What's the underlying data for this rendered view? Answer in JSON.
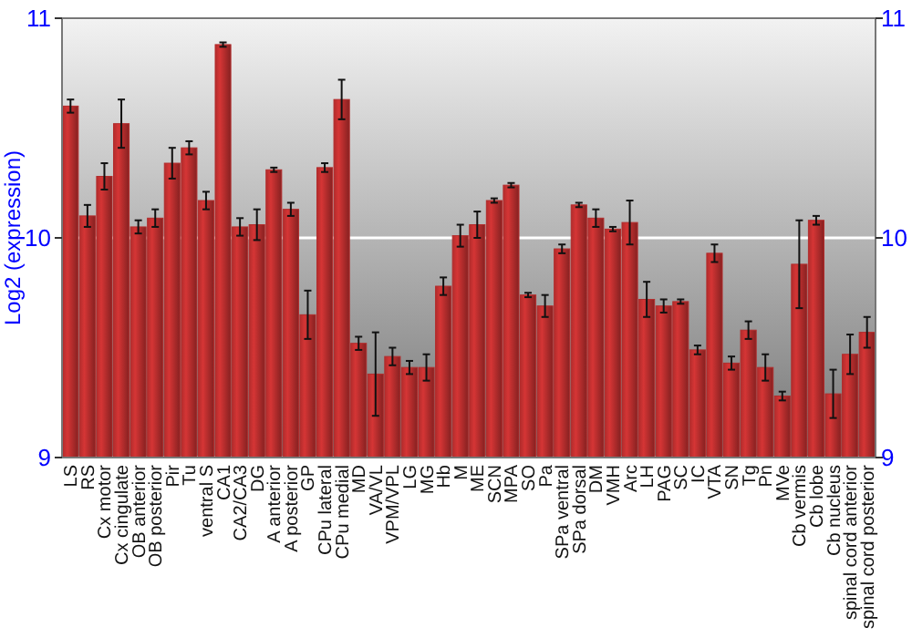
{
  "chart_data": {
    "type": "bar",
    "ylabel": "Log2 (expression)",
    "categories": [
      "LS",
      "RS",
      "Cx motor",
      "Cx cingulate",
      "OB anterior",
      "OB posterior",
      "Pir",
      "Tu",
      "ventral S",
      "CA1",
      "CA2/CA3",
      "DG",
      "A anterior",
      "A posterior",
      "GP",
      "CPu lateral",
      "CPu medial",
      "MD",
      "VA/VL",
      "VPM/VPL",
      "LG",
      "MG",
      "Hb",
      "M",
      "ME",
      "SCN",
      "MPA",
      "SO",
      "Pa",
      "SPa ventral",
      "SPa dorsal",
      "DM",
      "VMH",
      "Arc",
      "LH",
      "PAG",
      "SC",
      "IC",
      "VTA",
      "SN",
      "Tg",
      "Pn",
      "MVe",
      "Cb vermis",
      "Cb lobe",
      "Cb nucleus",
      "spinal cord anterior",
      "spinal cord posterior"
    ],
    "values": [
      10.6,
      10.1,
      10.28,
      10.52,
      10.05,
      10.09,
      10.34,
      10.41,
      10.17,
      10.88,
      10.05,
      10.06,
      10.31,
      10.13,
      9.65,
      10.32,
      10.63,
      9.52,
      9.38,
      9.46,
      9.41,
      9.41,
      9.78,
      10.01,
      10.06,
      10.17,
      10.24,
      9.74,
      9.69,
      9.95,
      10.15,
      10.09,
      10.04,
      10.07,
      9.72,
      9.69,
      9.71,
      9.49,
      9.93,
      9.43,
      9.58,
      9.41,
      9.28,
      9.88,
      10.08,
      9.29,
      9.47,
      9.57
    ],
    "errors": [
      0.03,
      0.05,
      0.06,
      0.11,
      0.03,
      0.04,
      0.07,
      0.03,
      0.04,
      0.01,
      0.04,
      0.07,
      0.01,
      0.03,
      0.11,
      0.02,
      0.09,
      0.03,
      0.19,
      0.04,
      0.03,
      0.06,
      0.04,
      0.05,
      0.06,
      0.01,
      0.01,
      0.01,
      0.05,
      0.02,
      0.01,
      0.04,
      0.01,
      0.1,
      0.08,
      0.03,
      0.01,
      0.02,
      0.04,
      0.03,
      0.04,
      0.06,
      0.02,
      0.2,
      0.02,
      0.11,
      0.09,
      0.07
    ],
    "color": "#b22c2c",
    "ylim": [
      9,
      11
    ],
    "yticks": [
      9,
      10,
      11
    ],
    "y2lim": [
      9,
      11
    ],
    "y2ticks": [
      9,
      10,
      11
    ],
    "grid": "y"
  }
}
